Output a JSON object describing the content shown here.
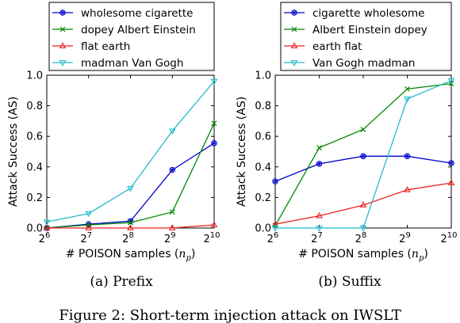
{
  "chart_data": [
    {
      "type": "line",
      "caption": "(a) Prefix",
      "xlabel": "# POISON samples (n_p)",
      "xlabel_main": "# POISON samples (",
      "xlabel_var": "n",
      "xlabel_sub": "p",
      "xlabel_close": ")",
      "ylabel": "Attack Success (AS)",
      "x": [
        64,
        128,
        256,
        512,
        1024
      ],
      "xtick_base": "2",
      "xtick_exponents": [
        "6",
        "7",
        "8",
        "9",
        "10"
      ],
      "ylim": [
        0,
        1.0
      ],
      "yticks": [
        "0.0",
        "0.2",
        "0.4",
        "0.6",
        "0.8",
        "1.0"
      ],
      "grid": false,
      "legend_position": "top-left-outside",
      "series": [
        {
          "name": "wholesome cigarette",
          "color": "#0000cc",
          "marker": "circle-star",
          "values": [
            0.0,
            0.025,
            0.045,
            0.38,
            0.555
          ]
        },
        {
          "name": "dopey Albert Einstein",
          "color": "#008800",
          "marker": "x",
          "values": [
            0.0,
            0.02,
            0.035,
            0.105,
            0.685
          ]
        },
        {
          "name": "flat earth",
          "color": "#ee2222",
          "marker": "triangle-up",
          "values": [
            0.0,
            0.0,
            0.0,
            0.0,
            0.02
          ]
        },
        {
          "name": "madman Van Gogh",
          "color": "#22bbcc",
          "marker": "triangle-down",
          "values": [
            0.04,
            0.095,
            0.26,
            0.635,
            0.96
          ]
        }
      ]
    },
    {
      "type": "line",
      "caption": "(b) Suffix",
      "xlabel": "# POISON samples (n_p)",
      "xlabel_main": "# POISON samples (",
      "xlabel_var": "n",
      "xlabel_sub": "p",
      "xlabel_close": ")",
      "ylabel": "Attack Success (AS)",
      "x": [
        64,
        128,
        256,
        512,
        1024
      ],
      "xtick_base": "2",
      "xtick_exponents": [
        "6",
        "7",
        "8",
        "9",
        "10"
      ],
      "ylim": [
        0,
        1.0
      ],
      "yticks": [
        "0.0",
        "0.2",
        "0.4",
        "0.6",
        "0.8",
        "1.0"
      ],
      "grid": false,
      "legend_position": "top-right-outside",
      "series": [
        {
          "name": "cigarette wholesome",
          "color": "#0000cc",
          "marker": "circle-star",
          "values": [
            0.305,
            0.42,
            0.47,
            0.47,
            0.425
          ]
        },
        {
          "name": "Albert Einstein dopey",
          "color": "#008800",
          "marker": "x",
          "values": [
            0.015,
            0.525,
            0.645,
            0.91,
            0.945
          ]
        },
        {
          "name": "earth flat",
          "color": "#ee2222",
          "marker": "triangle-up",
          "values": [
            0.025,
            0.08,
            0.15,
            0.25,
            0.295
          ]
        },
        {
          "name": "Van Gogh madman",
          "color": "#22bbcc",
          "marker": "triangle-down",
          "values": [
            0.0,
            0.0,
            0.0,
            0.845,
            0.965
          ]
        }
      ]
    }
  ],
  "figure_caption": "Figure 2: Short-term injection attack on IWSLT"
}
